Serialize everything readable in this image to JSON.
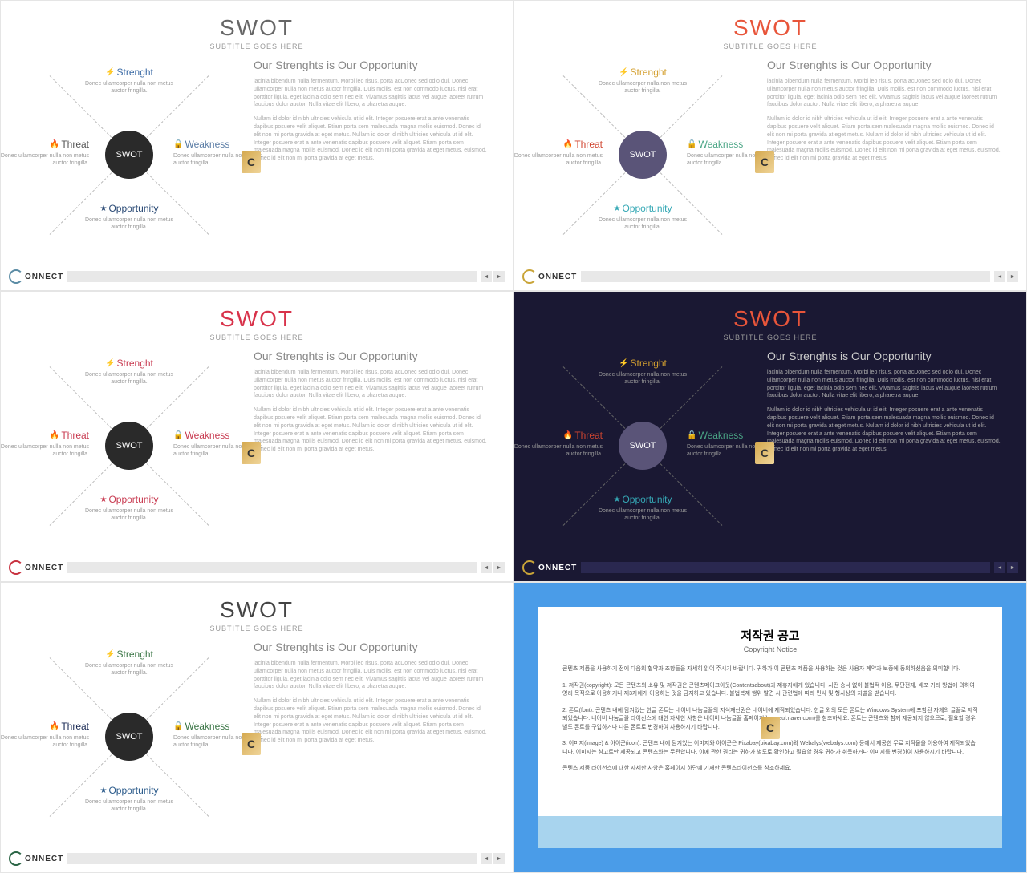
{
  "common": {
    "title": "SWOT",
    "subtitle": "SUBTITLE GOES HERE",
    "circle_label": "SWOT",
    "logo_text": "ONNECT",
    "text_heading": "Our Strenghts is Our Opportunity",
    "text_p1": "lacinia bibendum nulla fermentum. Morbi leo risus, porta acDonec sed odio dui. Donec ullamcorper nulla non metus auctor fringilla. Duis mollis, est non commodo luctus, nisi erat porttitor ligula, eget lacinia odio sem nec elit. Vivamus sagittis lacus vel augue laoreet rutrum faucibus dolor auctor. Nulla vitae elit libero, a pharetra augue.",
    "text_p2": "Nullam id dolor id nibh ultricies vehicula ut id elit. Integer posuere erat a ante venenatis dapibus posuere velit aliquet. Etiam porta sem malesuada magna mollis euismod. Donec id elit non mi porta gravida at eget metus. Nullam id dolor id nibh ultricies vehicula ut id elit. Integer posuere erat a ante venenatis dapibus posuere velit aliquet. Etiam porta sem malesuada magna mollis euismod. Donec id elit non mi porta gravida at eget metus. euismod. Donec id elit non mi porta gravida at eget metus.",
    "quad_desc": "Donec ullamcorper nulla non metus auctor fringilla.",
    "quads": {
      "strength": "Strenght",
      "weakness": "Weakness",
      "opportunity": "Opportunity",
      "threat": "Threat"
    },
    "icons": {
      "strength": "⚡",
      "weakness": "🔓",
      "opportunity": "★",
      "threat": "🔥"
    },
    "nav_prev": "◄",
    "nav_next": "►",
    "watermark": "C"
  },
  "variants": [
    {
      "id": "v1",
      "dark": false,
      "title_color": "#666",
      "circle_bg": "#2a2a2a",
      "logo_text_color": "#333",
      "logo_circle_color": "#5b8ca5",
      "colors": {
        "strength": "#3a6aa5",
        "weakness": "#5a7ca5",
        "opportunity": "#2a4a75",
        "threat": "#555"
      }
    },
    {
      "id": "v2",
      "dark": false,
      "title_color": "#e8553a",
      "circle_bg": "#5a5478",
      "logo_text_color": "#333",
      "logo_circle_color": "#c9a438",
      "colors": {
        "strength": "#d4a030",
        "weakness": "#4aa585",
        "opportunity": "#35a8b5",
        "threat": "#d04530"
      }
    },
    {
      "id": "v3",
      "dark": false,
      "title_color": "#d8324a",
      "circle_bg": "#2a2a2a",
      "logo_text_color": "#333",
      "logo_circle_color": "#c83240",
      "colors": {
        "strength": "#c83a50",
        "weakness": "#c83a50",
        "opportunity": "#c83a50",
        "threat": "#c83a50"
      }
    },
    {
      "id": "v4",
      "dark": true,
      "title_color": "#e8553a",
      "circle_bg": "#5a5478",
      "logo_text_color": "#fff",
      "logo_circle_color": "#c9a438",
      "colors": {
        "strength": "#d4a030",
        "weakness": "#4aa585",
        "opportunity": "#35a8b5",
        "threat": "#d04530"
      }
    },
    {
      "id": "v5",
      "dark": false,
      "title_color": "#444",
      "circle_bg": "#2a2a2a",
      "logo_text_color": "#333",
      "logo_circle_color": "#2a6545",
      "colors": {
        "strength": "#3a7545",
        "weakness": "#3a7545",
        "opportunity": "#2a5a8a",
        "threat": "#1a2a55"
      }
    }
  ],
  "notice": {
    "title_ko": "저작권 공고",
    "title_en": "Copyright Notice",
    "intro": "콘텐츠 제품을 사용하기 전에 다음의 협약과 조항들을 자세히 읽어 주시기 바랍니다. 귀하가 이 콘텐츠 제품을 사용하는 것은 사용자 계약과 보증에 동의하셨음을 의미합니다.",
    "p1": "1. 저작권(copyright): 모든 콘텐츠의 소유 및 저작권은 콘텐츠메이크아웃(Contentsabout)과 제휴자에게 있습니다. 사전 승낙 없이 불법적 이용, 무단전재, 배포 기타 방법에 의하여 영리 목적으로 이용하거나 제3자에게 이용하는 것을 금지하고 있습니다. 불법복제 행위 발견 시 관련법에 따라 민사 및 형사상의 처벌을 받습니다.",
    "p2": "2. 폰트(font): 콘텐츠 내에 담겨있는 한글 폰트는 네이버 나눔글꼴의 지식재산권은 네이버에 제작되었습니다. 한글 외의 모든 폰트는 Windows System에 포함된 자체의 글꼴로 제작되었습니다. 네이버 나눔글꼴 라이선스에 대한 자세한 사항은 네이버 나눔글꼴 홈페이지(hangeul.naver.com)를 참조하세요. 폰트는 콘텐츠와 함께 제공되지 않으므로, 필요할 경우 별도 폰트를 구입하거나 다른 폰트로 변경하여 사용하시기 바랍니다.",
    "p3": "3. 이미지(image) & 아이콘(icon): 콘텐츠 내에 담겨있는 이미지와 아이콘은 Pixabay(pixabay.com)와 Webalys(webalys.com) 등에서 제공한 무료 저작물을 이용하여 제작되었습니다. 이미지는 참고로만 제공되고 콘텐츠와는 무관합니다. 이에 관한 권리는 귀하가 별도로 확인하고 필요할 경우 귀하가 취득하거나 이미지를 변경하여 사용하시기 바랍니다.",
    "outro": "콘텐츠 제품 라이선스에 대한 자세한 사항은 홈페이지 하단에 기재한 콘텐츠라이선스를 참조하세요."
  }
}
